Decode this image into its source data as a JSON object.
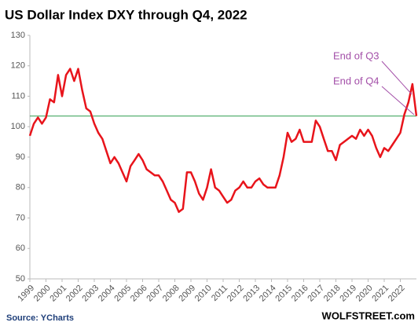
{
  "chart_data": {
    "type": "line",
    "title": "US Dollar Index DXY through Q4, 2022",
    "source": "Source: YCharts",
    "brand": "WOLFSTREET.com",
    "annotations": [
      "End of Q3",
      "End of Q4"
    ],
    "x": [
      1999.0,
      1999.25,
      1999.5,
      1999.75,
      2000.0,
      2000.25,
      2000.5,
      2000.75,
      2001.0,
      2001.25,
      2001.5,
      2001.75,
      2002.0,
      2002.25,
      2002.5,
      2002.75,
      2003.0,
      2003.25,
      2003.5,
      2003.75,
      2004.0,
      2004.25,
      2004.5,
      2004.75,
      2005.0,
      2005.25,
      2005.5,
      2005.75,
      2006.0,
      2006.25,
      2006.5,
      2006.75,
      2007.0,
      2007.25,
      2007.5,
      2007.75,
      2008.0,
      2008.25,
      2008.5,
      2008.75,
      2009.0,
      2009.25,
      2009.5,
      2009.75,
      2010.0,
      2010.25,
      2010.5,
      2010.75,
      2011.0,
      2011.25,
      2011.5,
      2011.75,
      2012.0,
      2012.25,
      2012.5,
      2012.75,
      2013.0,
      2013.25,
      2013.5,
      2013.75,
      2014.0,
      2014.25,
      2014.5,
      2014.75,
      2015.0,
      2015.25,
      2015.5,
      2015.75,
      2016.0,
      2016.25,
      2016.5,
      2016.75,
      2017.0,
      2017.25,
      2017.5,
      2017.75,
      2018.0,
      2018.25,
      2018.5,
      2018.75,
      2019.0,
      2019.25,
      2019.5,
      2019.75,
      2020.0,
      2020.25,
      2020.5,
      2020.75,
      2021.0,
      2021.25,
      2021.5,
      2021.75,
      2022.0,
      2022.25,
      2022.5,
      2022.75,
      2023.0
    ],
    "series": [
      {
        "name": "DXY",
        "color": "#e8141b",
        "values": [
          97,
          101,
          103,
          101,
          103,
          109,
          108,
          117,
          110,
          117,
          119,
          115,
          119,
          112,
          106,
          105,
          101,
          98,
          96,
          92,
          88,
          90,
          88,
          85,
          82,
          87,
          89,
          91,
          89,
          86,
          85,
          84,
          84,
          82,
          79,
          76,
          75,
          72,
          73,
          85,
          85,
          82,
          78,
          76,
          80,
          86,
          80,
          79,
          77,
          75,
          76,
          79,
          80,
          82,
          80,
          80,
          82,
          83,
          81,
          80,
          80,
          80,
          84,
          90,
          98,
          95,
          96,
          99,
          95,
          95,
          95,
          102,
          100,
          96,
          92,
          92,
          89,
          94,
          95,
          96,
          97,
          96,
          99,
          97,
          99,
          97,
          93,
          90,
          93,
          92,
          94,
          96,
          98,
          104,
          108,
          114,
          103.5
        ]
      }
    ],
    "reference_line": {
      "value": 103.5,
      "color": "#2e9e4f"
    },
    "annotation_color": "#a34fa8",
    "xlim": [
      1999,
      2023
    ],
    "xticks": [
      1999,
      2000,
      2001,
      2002,
      2003,
      2004,
      2005,
      2006,
      2007,
      2008,
      2009,
      2010,
      2011,
      2012,
      2013,
      2014,
      2015,
      2016,
      2017,
      2018,
      2019,
      2020,
      2021,
      2022
    ],
    "ylim": [
      50,
      130
    ],
    "yticks": [
      50,
      60,
      70,
      80,
      90,
      100,
      110,
      120,
      130
    ],
    "grid": false
  }
}
